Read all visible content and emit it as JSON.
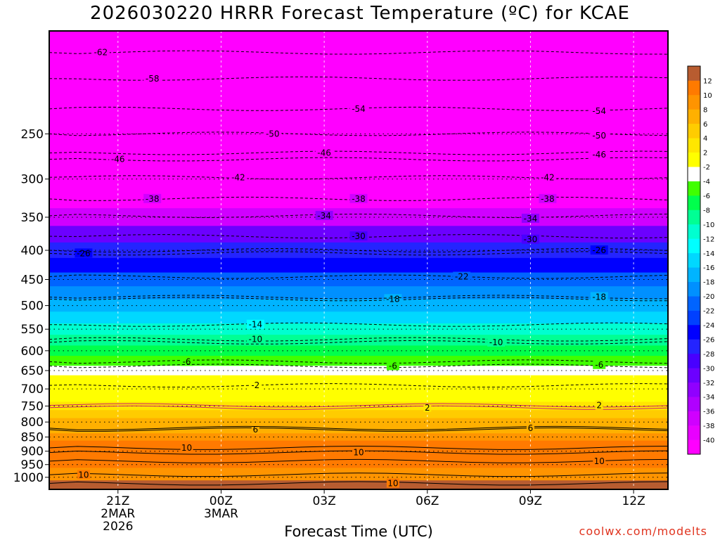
{
  "chart_data": {
    "type": "heatmap",
    "title": "2026030220 HRRR Forecast Temperature (ºC) for KCAE",
    "xlabel": "Forecast Time (UTC)",
    "ylabel": "",
    "credit": "coolwx.com/modelts",
    "x_hours": [
      0,
      3,
      6,
      9,
      12,
      15,
      18
    ],
    "x_range_hours": [
      -1,
      17
    ],
    "x_ticks": [
      {
        "hour": 1,
        "lines": [
          "21Z",
          "2MAR",
          "2026"
        ]
      },
      {
        "hour": 4,
        "lines": [
          "00Z",
          "3MAR"
        ]
      },
      {
        "hour": 7,
        "lines": [
          "03Z"
        ]
      },
      {
        "hour": 10,
        "lines": [
          "06Z"
        ]
      },
      {
        "hour": 13,
        "lines": [
          "09Z"
        ]
      },
      {
        "hour": 16,
        "lines": [
          "12Z"
        ]
      }
    ],
    "y_scale": "log-pressure",
    "y_range": [
      1050,
      165
    ],
    "y_ticks": [
      250,
      300,
      350,
      400,
      450,
      500,
      550,
      600,
      650,
      700,
      750,
      800,
      850,
      900,
      950,
      1000
    ],
    "pressure_levels": [
      175,
      200,
      225,
      250,
      275,
      300,
      325,
      350,
      375,
      400,
      425,
      450,
      475,
      500,
      525,
      550,
      575,
      600,
      625,
      650,
      675,
      700,
      725,
      750,
      775,
      800,
      825,
      850,
      875,
      900,
      925,
      950,
      975,
      1000,
      1025
    ],
    "temperature_profile": [
      -63,
      -60,
      -57,
      -54,
      -51,
      -48,
      -42,
      -37,
      -32,
      -28,
      -25,
      -22,
      -19,
      -17,
      -15,
      -12,
      -10,
      -8,
      -6,
      -4,
      -2,
      0,
      1,
      3,
      5,
      6,
      7,
      8,
      10,
      11,
      11,
      10,
      9,
      9,
      12
    ],
    "colorbar_levels": [
      -40,
      -38,
      -36,
      -34,
      -32,
      -30,
      -28,
      -26,
      -24,
      -22,
      -20,
      -18,
      -16,
      -14,
      -12,
      -10,
      -8,
      -6,
      -4,
      -2,
      2,
      4,
      6,
      8,
      10,
      12
    ],
    "colorbar_colors": [
      "#ff00ff",
      "#e800ff",
      "#d000ff",
      "#b000ff",
      "#9000ff",
      "#6c00ff",
      "#4800ff",
      "#2424ff",
      "#0000ff",
      "#0040ff",
      "#0064ff",
      "#0090ff",
      "#00b4ff",
      "#00d8ff",
      "#00ffff",
      "#00ffd0",
      "#00ff94",
      "#00ff4c",
      "#40ff00",
      "#ffffff",
      "#ffff00",
      "#ffe600",
      "#ffcc00",
      "#ffb000",
      "#ff9400",
      "#ff7a00",
      "#b85c30"
    ],
    "contour_labels": [
      {
        "value": "-62",
        "hour": 0.5,
        "p": 180
      },
      {
        "value": "-58",
        "hour": 2,
        "p": 200
      },
      {
        "value": "-54",
        "hour": 8,
        "p": 226
      },
      {
        "value": "-54",
        "hour": 15,
        "p": 228
      },
      {
        "value": "-50",
        "hour": 5.5,
        "p": 250
      },
      {
        "value": "-50",
        "hour": 15,
        "p": 252
      },
      {
        "value": "-46",
        "hour": 1,
        "p": 277
      },
      {
        "value": "-46",
        "hour": 7,
        "p": 270
      },
      {
        "value": "-46",
        "hour": 15,
        "p": 272
      },
      {
        "value": "-42",
        "hour": 4.5,
        "p": 298
      },
      {
        "value": "-42",
        "hour": 13.5,
        "p": 298
      },
      {
        "value": "-38",
        "hour": 2,
        "p": 325
      },
      {
        "value": "-38",
        "hour": 8,
        "p": 325
      },
      {
        "value": "-38",
        "hour": 13.5,
        "p": 325
      },
      {
        "value": "-34",
        "hour": 7,
        "p": 348
      },
      {
        "value": "-34",
        "hour": 13,
        "p": 352
      },
      {
        "value": "-30",
        "hour": 8,
        "p": 378
      },
      {
        "value": "-30",
        "hour": 13,
        "p": 383
      },
      {
        "value": "-26",
        "hour": 0,
        "p": 405
      },
      {
        "value": "-26",
        "hour": 15,
        "p": 400
      },
      {
        "value": "-22",
        "hour": 11,
        "p": 445
      },
      {
        "value": "-18",
        "hour": 9,
        "p": 487
      },
      {
        "value": "-18",
        "hour": 15,
        "p": 483
      },
      {
        "value": "-14",
        "hour": 5,
        "p": 540
      },
      {
        "value": "-10",
        "hour": 5,
        "p": 573
      },
      {
        "value": "-10",
        "hour": 12,
        "p": 580
      },
      {
        "value": "-6",
        "hour": 3,
        "p": 627
      },
      {
        "value": "-6",
        "hour": 9,
        "p": 638
      },
      {
        "value": "-6",
        "hour": 15,
        "p": 635
      },
      {
        "value": "-2",
        "hour": 5,
        "p": 690
      },
      {
        "value": "2",
        "hour": 10,
        "p": 755
      },
      {
        "value": "2",
        "hour": 15,
        "p": 748
      },
      {
        "value": "6",
        "hour": 5,
        "p": 825
      },
      {
        "value": "6",
        "hour": 13,
        "p": 820
      },
      {
        "value": "10",
        "hour": 3,
        "p": 888
      },
      {
        "value": "10",
        "hour": 8,
        "p": 905
      },
      {
        "value": "10",
        "hour": 15,
        "p": 937
      },
      {
        "value": "10",
        "hour": 0,
        "p": 990
      },
      {
        "value": "10",
        "hour": 9,
        "p": 1025
      }
    ]
  }
}
